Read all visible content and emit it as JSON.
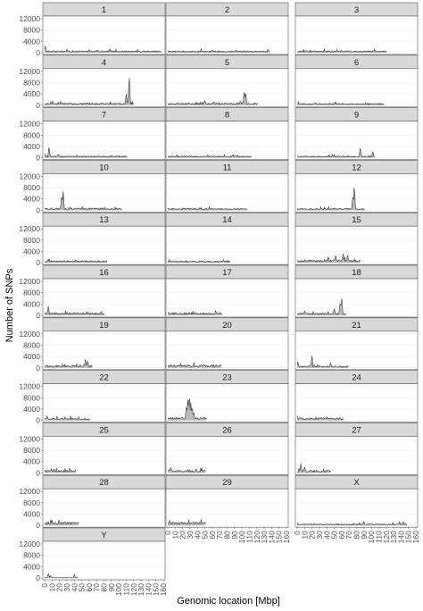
{
  "figure": {
    "ylabel": "Number of SNPs",
    "xlabel": "Genomic location [Mbp]"
  },
  "chart_data": {
    "type": "area",
    "xlabel": "Genomic location [Mbp]",
    "ylabel": "Number of SNPs",
    "ylim": [
      0,
      12000
    ],
    "yticks": [
      0,
      4000,
      8000,
      12000
    ],
    "xlim": [
      0,
      160
    ],
    "xticks": [
      0,
      10,
      20,
      30,
      40,
      50,
      60,
      70,
      80,
      90,
      100,
      110,
      120,
      130,
      140,
      150,
      160
    ],
    "grid": true,
    "legend": "none",
    "facet_columns": 3,
    "colors": {
      "panel_background": "#ffffff",
      "strip_background": "#d9d9d9",
      "gridline": "#ebebeb",
      "series": "#3a3a3a",
      "text": "#4d4d4d"
    },
    "panels": [
      {
        "label": "1",
        "length": 157,
        "base": 500,
        "peaks": [
          [
            1,
            2600
          ]
        ]
      },
      {
        "label": "2",
        "length": 137,
        "base": 500,
        "peaks": [
          [
            92,
            900
          ]
        ]
      },
      {
        "label": "3",
        "length": 121,
        "base": 500,
        "peaks": [
          [
            12,
            900
          ],
          [
            103,
            700
          ]
        ]
      },
      {
        "label": "4",
        "length": 120,
        "base": 600,
        "peaks": [
          [
            110,
            4000
          ],
          [
            114,
            10500
          ]
        ]
      },
      {
        "label": "5",
        "length": 121,
        "base": 600,
        "peaks": [
          [
            50,
            1700
          ],
          [
            62,
            1400
          ],
          [
            98,
            1800
          ],
          [
            103,
            5500
          ],
          [
            105,
            4500
          ]
        ]
      },
      {
        "label": "6",
        "length": 117,
        "base": 500,
        "peaks": [
          [
            25,
            900
          ]
        ]
      },
      {
        "label": "7",
        "length": 111,
        "base": 500,
        "peaks": [
          [
            6,
            4000
          ],
          [
            18,
            1400
          ]
        ]
      },
      {
        "label": "8",
        "length": 113,
        "base": 500,
        "peaks": [
          [
            54,
            1000
          ],
          [
            88,
            1100
          ]
        ]
      },
      {
        "label": "9",
        "length": 105,
        "base": 500,
        "peaks": [
          [
            85,
            3400
          ],
          [
            102,
            2500
          ]
        ]
      },
      {
        "label": "10",
        "length": 104,
        "base": 600,
        "peaks": [
          [
            23,
            5500
          ],
          [
            25,
            6800
          ]
        ]
      },
      {
        "label": "11",
        "length": 107,
        "base": 500,
        "peaks": [
          [
            90,
            800
          ]
        ]
      },
      {
        "label": "12",
        "length": 91,
        "base": 500,
        "peaks": [
          [
            75,
            5000
          ],
          [
            77,
            9000
          ]
        ]
      },
      {
        "label": "13",
        "length": 84,
        "base": 600,
        "peaks": [
          [
            5,
            1200
          ],
          [
            42,
            1200
          ]
        ]
      },
      {
        "label": "14",
        "length": 84,
        "base": 500,
        "peaks": [
          [
            75,
            1200
          ]
        ]
      },
      {
        "label": "15",
        "length": 85,
        "base": 800,
        "peaks": [
          [
            42,
            2500
          ],
          [
            52,
            3000
          ],
          [
            62,
            3800
          ],
          [
            68,
            3200
          ]
        ]
      },
      {
        "label": "16",
        "length": 81,
        "base": 700,
        "peaks": [
          [
            5,
            3200
          ],
          [
            40,
            1000
          ]
        ]
      },
      {
        "label": "17",
        "length": 73,
        "base": 700,
        "peaks": [
          [
            10,
            900
          ]
        ]
      },
      {
        "label": "18",
        "length": 66,
        "base": 600,
        "peaks": [
          [
            50,
            2500
          ],
          [
            58,
            5000
          ],
          [
            60,
            6500
          ]
        ]
      },
      {
        "label": "19",
        "length": 64,
        "base": 700,
        "peaks": [
          [
            55,
            3200
          ],
          [
            58,
            2600
          ]
        ]
      },
      {
        "label": "20",
        "length": 72,
        "base": 800,
        "peaks": [
          [
            65,
            1200
          ]
        ]
      },
      {
        "label": "21",
        "length": 69,
        "base": 500,
        "peaks": [
          [
            1,
            2200
          ],
          [
            20,
            4300
          ],
          [
            45,
            1800
          ]
        ]
      },
      {
        "label": "22",
        "length": 61,
        "base": 600,
        "peaks": [
          [
            28,
            900
          ]
        ]
      },
      {
        "label": "23",
        "length": 52,
        "base": 800,
        "peaks": [
          [
            25,
            5000
          ],
          [
            27,
            8000
          ],
          [
            29,
            9500
          ],
          [
            31,
            6500
          ],
          [
            33,
            5000
          ],
          [
            35,
            3000
          ]
        ]
      },
      {
        "label": "24",
        "length": 62,
        "base": 700,
        "peaks": [
          [
            30,
            1000
          ]
        ]
      },
      {
        "label": "25",
        "length": 42,
        "base": 700,
        "peaks": [
          [
            20,
            900
          ]
        ]
      },
      {
        "label": "26",
        "length": 51,
        "base": 700,
        "peaks": [
          [
            4,
            2000
          ]
        ]
      },
      {
        "label": "27",
        "length": 45,
        "base": 700,
        "peaks": [
          [
            5,
            3300
          ],
          [
            10,
            2200
          ]
        ]
      },
      {
        "label": "28",
        "length": 46,
        "base": 900,
        "peaks": [
          [
            5,
            1300
          ]
        ]
      },
      {
        "label": "29",
        "length": 51,
        "base": 900,
        "peaks": [
          [
            8,
            1400
          ]
        ]
      },
      {
        "label": "X",
        "length": 148,
        "base": 400,
        "peaks": [
          [
            90,
            1500
          ],
          [
            138,
            1300
          ],
          [
            143,
            1400
          ]
        ]
      },
      {
        "label": "Y",
        "length": 45,
        "base": 100,
        "peaks": [
          [
            5,
            1500
          ],
          [
            8,
            1000
          ],
          [
            40,
            1200
          ]
        ]
      }
    ]
  }
}
